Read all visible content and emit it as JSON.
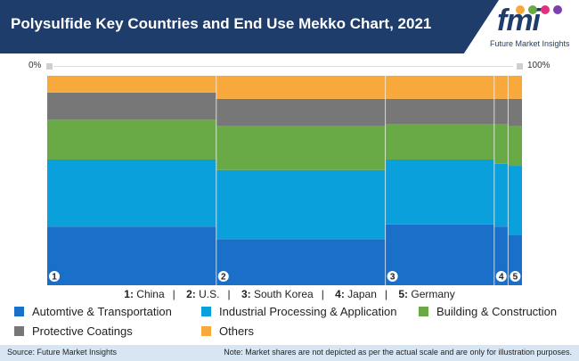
{
  "title": "Polysulfide Key Countries and End Use Mekko Chart, 2021",
  "logo": {
    "text": "fmi",
    "tagline": "Future Market Insights"
  },
  "scale": {
    "left_label": "0%",
    "right_label": "100%"
  },
  "country_legend": [
    {
      "num": "1:",
      "name": "China"
    },
    {
      "num": "2:",
      "name": "U.S."
    },
    {
      "num": "3:",
      "name": "South Korea"
    },
    {
      "num": "4:",
      "name": "Japan"
    },
    {
      "num": "5:",
      "name": "Germany"
    }
  ],
  "legend": [
    {
      "label": "Automtive & Transportation",
      "color": "#1a6fc9"
    },
    {
      "label": "Industrial Processing & Application",
      "color": "#0aa0dc"
    },
    {
      "label": "Building & Construction",
      "color": "#6aaa46"
    },
    {
      "label": "Protective Coatings",
      "color": "#777777"
    },
    {
      "label": "Others",
      "color": "#f7a93b"
    }
  ],
  "footer": {
    "source": "Source: Future Market Insights",
    "note": "Note: Market shares are not depicted as per the actual scale and are only for illustration purposes."
  },
  "chart_data": {
    "type": "mekko",
    "categories": [
      "1",
      "2",
      "3",
      "4",
      "5"
    ],
    "widths": [
      36.5,
      36.5,
      23.5,
      3,
      3
    ],
    "series": [
      {
        "name": "Automtive & Transportation",
        "color": "#1a6fc9",
        "values": [
          28,
          22,
          29,
          28,
          24
        ]
      },
      {
        "name": "Industrial Processing & Application",
        "color": "#0aa0dc",
        "values": [
          32,
          33,
          31,
          30,
          33
        ]
      },
      {
        "name": "Building & Construction",
        "color": "#6aaa46",
        "values": [
          19,
          21,
          17,
          19,
          19
        ]
      },
      {
        "name": "Protective Coatings",
        "color": "#777777",
        "values": [
          13,
          13,
          12,
          12,
          13
        ]
      },
      {
        "name": "Others",
        "color": "#f7a93b",
        "values": [
          8,
          11,
          11,
          11,
          11
        ]
      }
    ],
    "xlim": [
      0,
      100
    ],
    "ylim": [
      0,
      100
    ]
  }
}
